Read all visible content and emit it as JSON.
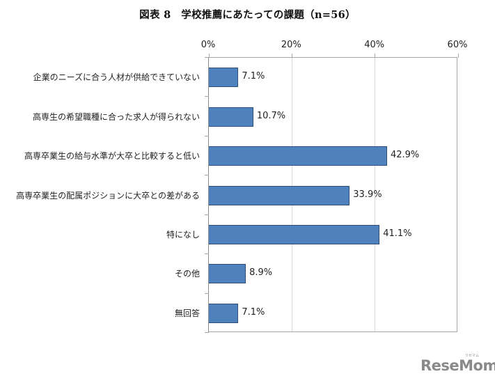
{
  "title": "図表 8　学校推薦にあたっての課題（n=56）",
  "chart_data": {
    "type": "bar",
    "orientation": "horizontal",
    "title": "図表 8　学校推薦にあたっての課題（n=56）",
    "xlabel": "",
    "ylabel": "",
    "xlim": [
      0,
      60
    ],
    "x_ticks": [
      "0%",
      "20%",
      "40%",
      "60%"
    ],
    "x_axis_position": "top",
    "grid": true,
    "legend": null,
    "bar_color": "#4F81BD",
    "categories": [
      "企業のニーズに合う人材が供給できていない",
      "高専生の希望職種に合った求人が得られない",
      "高専卒業生の給与水準が大卒と比較すると低い",
      "高専卒業生の配属ポジションに大卒との差がある",
      "特になし",
      "その他",
      "無回答"
    ],
    "values": [
      7.1,
      10.7,
      42.9,
      33.9,
      41.1,
      8.9,
      7.1
    ],
    "value_labels": [
      "7.1%",
      "10.7%",
      "42.9%",
      "33.9%",
      "41.1%",
      "8.9%",
      "7.1%"
    ]
  },
  "watermark": {
    "text": "ReseMom",
    "subtext": "リセマム"
  }
}
